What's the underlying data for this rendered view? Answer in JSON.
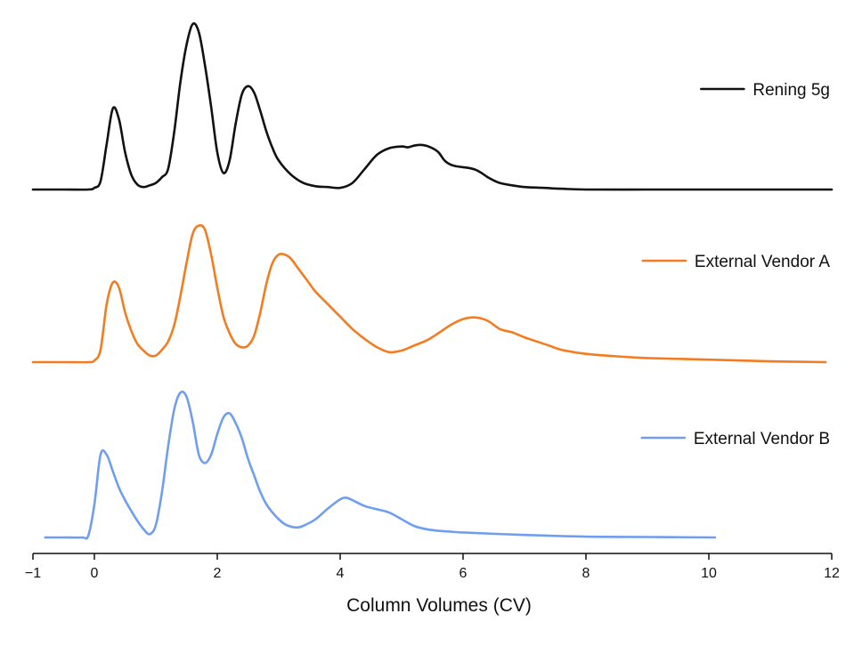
{
  "chart_data": {
    "type": "line",
    "title": "",
    "xlabel": "Column Volumes (CV)",
    "ylabel": "",
    "xlim": [
      -1,
      12
    ],
    "xticks": [
      -1,
      0,
      2,
      4,
      6,
      8,
      10,
      12
    ],
    "xtick_labels": [
      "−1",
      "0",
      "2",
      "4",
      "6",
      "8",
      "10",
      "12"
    ],
    "grid": false,
    "legend": "right, beside each trace",
    "series": [
      {
        "name": "Rening 5g",
        "color": "#111111",
        "baseline": 0,
        "x": [
          -1,
          -0.5,
          -0.1,
          0.0,
          0.1,
          0.2,
          0.3,
          0.4,
          0.5,
          0.6,
          0.7,
          0.8,
          0.9,
          1.0,
          1.1,
          1.2,
          1.3,
          1.4,
          1.5,
          1.6,
          1.7,
          1.8,
          1.9,
          2.0,
          2.1,
          2.2,
          2.3,
          2.4,
          2.5,
          2.6,
          2.7,
          2.8,
          2.9,
          3.0,
          3.2,
          3.4,
          3.6,
          3.8,
          4.0,
          4.2,
          4.4,
          4.6,
          4.8,
          5.0,
          5.1,
          5.2,
          5.3,
          5.4,
          5.5,
          5.6,
          5.7,
          5.8,
          5.9,
          6.0,
          6.1,
          6.2,
          6.3,
          6.4,
          6.5,
          6.6,
          6.8,
          7.0,
          7.3,
          7.6,
          8.0,
          9.0,
          10.0,
          12.0
        ],
        "y": [
          0,
          0,
          0,
          2,
          10,
          55,
          98,
          85,
          45,
          18,
          6,
          3,
          5,
          8,
          15,
          25,
          70,
          130,
          175,
          200,
          190,
          150,
          100,
          45,
          20,
          35,
          80,
          115,
          125,
          117,
          95,
          70,
          50,
          35,
          18,
          8,
          4,
          3,
          2,
          8,
          25,
          42,
          50,
          52,
          51,
          53,
          54,
          53,
          50,
          45,
          35,
          30,
          28,
          27,
          26,
          24,
          20,
          15,
          11,
          8,
          5,
          3,
          2,
          1,
          0,
          0,
          0,
          0
        ]
      },
      {
        "name": "External Vendor A",
        "color": "#f47c20",
        "baseline": 0,
        "x": [
          -1,
          -0.5,
          -0.1,
          0.0,
          0.1,
          0.2,
          0.3,
          0.4,
          0.5,
          0.6,
          0.7,
          0.8,
          0.9,
          1.0,
          1.1,
          1.2,
          1.3,
          1.4,
          1.5,
          1.6,
          1.7,
          1.8,
          1.9,
          2.0,
          2.1,
          2.2,
          2.3,
          2.4,
          2.5,
          2.6,
          2.7,
          2.8,
          2.9,
          3.0,
          3.1,
          3.2,
          3.3,
          3.4,
          3.5,
          3.6,
          3.8,
          4.0,
          4.2,
          4.4,
          4.6,
          4.8,
          5.0,
          5.2,
          5.4,
          5.6,
          5.8,
          6.0,
          6.2,
          6.4,
          6.6,
          6.8,
          7.0,
          7.2,
          7.4,
          7.6,
          8.0,
          8.5,
          9.0,
          10.0,
          11.0,
          11.9
        ],
        "y": [
          0,
          0,
          0,
          2,
          15,
          70,
          96,
          90,
          60,
          38,
          22,
          14,
          8,
          8,
          15,
          25,
          45,
          80,
          120,
          155,
          165,
          160,
          130,
          90,
          55,
          35,
          22,
          18,
          20,
          32,
          60,
          95,
          120,
          130,
          130,
          125,
          115,
          105,
          95,
          85,
          70,
          55,
          40,
          28,
          18,
          12,
          14,
          20,
          26,
          35,
          45,
          52,
          54,
          50,
          40,
          36,
          30,
          25,
          20,
          15,
          10,
          7,
          5,
          3,
          1,
          0
        ]
      },
      {
        "name": "External Vendor B",
        "color": "#6f9ef0",
        "baseline": 0,
        "x": [
          -0.8,
          -0.5,
          -0.2,
          -0.1,
          0.0,
          0.1,
          0.2,
          0.3,
          0.4,
          0.5,
          0.6,
          0.7,
          0.8,
          0.9,
          1.0,
          1.1,
          1.2,
          1.3,
          1.4,
          1.5,
          1.6,
          1.7,
          1.8,
          1.9,
          2.0,
          2.1,
          2.2,
          2.3,
          2.4,
          2.5,
          2.6,
          2.7,
          2.8,
          2.9,
          3.0,
          3.1,
          3.2,
          3.3,
          3.4,
          3.6,
          3.8,
          4.0,
          4.1,
          4.2,
          4.4,
          4.6,
          4.8,
          5.0,
          5.2,
          5.4,
          5.6,
          5.8,
          6.0,
          7.0,
          8.0,
          9.0,
          10.1
        ],
        "y": [
          0,
          0,
          0,
          2,
          40,
          100,
          100,
          80,
          60,
          45,
          32,
          20,
          10,
          4,
          15,
          55,
          110,
          155,
          175,
          170,
          140,
          100,
          90,
          100,
          125,
          145,
          150,
          138,
          120,
          95,
          75,
          55,
          40,
          30,
          22,
          16,
          13,
          12,
          14,
          22,
          35,
          46,
          48,
          45,
          38,
          34,
          30,
          22,
          14,
          10,
          8,
          7,
          6,
          3,
          1,
          0.5,
          0
        ]
      }
    ]
  }
}
